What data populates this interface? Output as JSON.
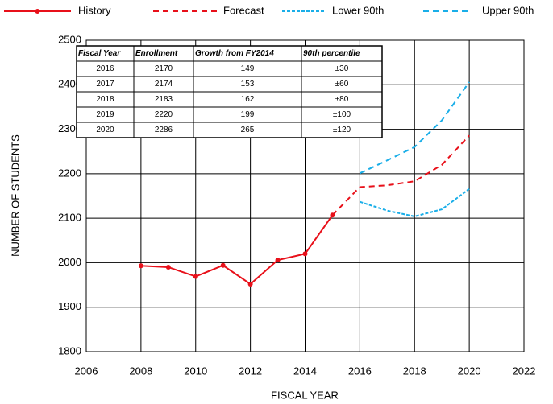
{
  "chart_data": {
    "type": "line",
    "x_label": "FISCAL YEAR",
    "y_label": "NUMBER OF STUDENTS",
    "xlim": [
      2006,
      2022
    ],
    "xticks": [
      2006,
      2008,
      2010,
      2012,
      2014,
      2016,
      2018,
      2020,
      2022
    ],
    "ylim": [
      1800,
      2500
    ],
    "yticks": [
      1800,
      1900,
      2000,
      2100,
      2200,
      2300,
      2400,
      2500
    ],
    "grid": true,
    "legend": "top",
    "series": [
      {
        "name": "History",
        "color": "#e8101a",
        "dash": "solid",
        "marker": true,
        "x": [
          2008,
          2009,
          2010,
          2011,
          2012,
          2013,
          2014,
          2015
        ],
        "values": [
          1993,
          1990,
          1969,
          1994,
          1952,
          2006,
          2020,
          2107
        ]
      },
      {
        "name": "Forecast",
        "color": "#e8101a",
        "dash": "long",
        "x": [
          2015,
          2016,
          2017,
          2018,
          2019,
          2020
        ],
        "values": [
          2107,
          2170,
          2174,
          2183,
          2220,
          2286
        ]
      },
      {
        "name": "Lower 90th",
        "color": "#1aaee8",
        "dash": "short",
        "x": [
          2016,
          2017,
          2018,
          2019,
          2020
        ],
        "values": [
          2137,
          2117,
          2104,
          2120,
          2166
        ]
      },
      {
        "name": "Upper 90th",
        "color": "#1aaee8",
        "dash": "long",
        "x": [
          2016,
          2017,
          2018,
          2019,
          2020
        ],
        "values": [
          2201,
          2230,
          2260,
          2320,
          2406
        ]
      }
    ],
    "table": {
      "columns": [
        "Fiscal Year",
        "Enrollment",
        "Growth from FY2014",
        "90th percentile"
      ],
      "rows": [
        [
          2016,
          2170,
          149,
          "±30"
        ],
        [
          2017,
          2174,
          153,
          "±60"
        ],
        [
          2018,
          2183,
          162,
          "±80"
        ],
        [
          2019,
          2220,
          199,
          "±100"
        ],
        [
          2020,
          2286,
          265,
          "±120"
        ]
      ]
    }
  }
}
